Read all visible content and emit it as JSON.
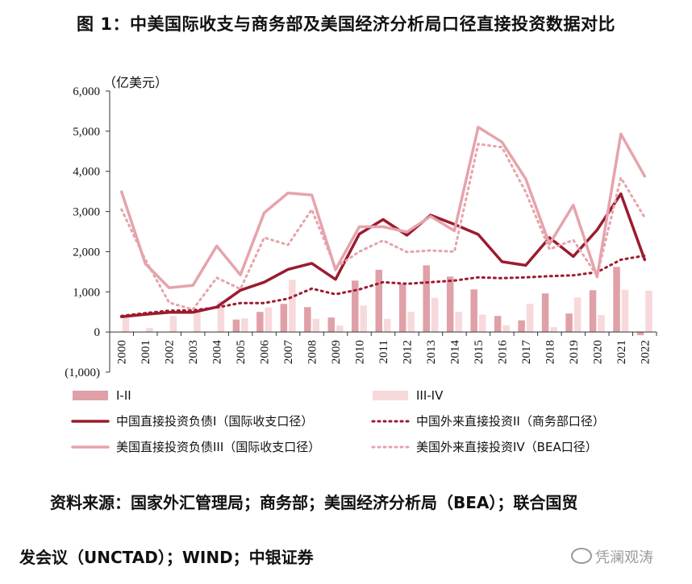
{
  "title": "图 1：中美国际收支与商务部及美国经济分析局口径直接投资数据对比",
  "source_line1": "资料来源：国家外汇管理局；商务部；美国经济分析局（BEA）；联合国贸",
  "source_line2": "发会议（UNCTAD）；WIND；中银证券",
  "watermark": "凭澜观涛",
  "colors": {
    "dark_red": "#9b1b30",
    "pink": "#e6a3ab",
    "light_pink": "#f6d6d9",
    "bar_dark": "#e0a0a8",
    "bar_light": "#f7d8db",
    "negative_tick": "#cc0000"
  },
  "chart_data": {
    "type": "bar+line",
    "unit_label": "（亿美元）",
    "ylim": [
      -1000,
      6000
    ],
    "yticks": [
      -1000,
      0,
      1000,
      2000,
      3000,
      4000,
      5000,
      6000
    ],
    "ytick_labels": [
      "(1,000)",
      "0",
      "1,000",
      "2,000",
      "3,000",
      "4,000",
      "5,000",
      "6,000"
    ],
    "categories": [
      "2000",
      "2001",
      "2002",
      "2003",
      "2004",
      "2005",
      "2006",
      "2007",
      "2008",
      "2009",
      "2010",
      "2011",
      "2012",
      "2013",
      "2014",
      "2015",
      "2016",
      "2017",
      "2018",
      "2019",
      "2020",
      "2021",
      "2022"
    ],
    "bar_series": [
      {
        "name": "I-II",
        "values": [
          0,
          0,
          0,
          0,
          0,
          310,
          500,
          700,
          620,
          360,
          1280,
          1550,
          1200,
          1660,
          1380,
          1060,
          400,
          290,
          960,
          460,
          1040,
          1620,
          -80
        ]
      },
      {
        "name": "III-IV",
        "values": [
          350,
          100,
          400,
          560,
          770,
          340,
          610,
          1300,
          330,
          160,
          660,
          330,
          500,
          850,
          500,
          430,
          170,
          700,
          120,
          860,
          420,
          1050,
          1030
        ]
      }
    ],
    "line_series": [
      {
        "name": "中国直接投资负债I（国际收支口径）",
        "style": "solid-dark",
        "values": [
          380,
          440,
          490,
          490,
          620,
          1040,
          1240,
          1560,
          1710,
          1310,
          2440,
          2800,
          2410,
          2910,
          2680,
          2430,
          1750,
          1660,
          2350,
          1880,
          2540,
          3440,
          1800
        ]
      },
      {
        "name": "中国外来直接投资II（商务部口径）",
        "style": "dotted-dark",
        "values": [
          400,
          470,
          530,
          540,
          610,
          720,
          720,
          830,
          1080,
          940,
          1060,
          1240,
          1200,
          1240,
          1280,
          1360,
          1340,
          1360,
          1390,
          1410,
          1490,
          1800,
          1900
        ]
      },
      {
        "name": "美国直接投资负债III（国际收支口径）",
        "style": "solid-pink",
        "values": [
          3490,
          1700,
          1100,
          1160,
          2140,
          1420,
          2970,
          3460,
          3410,
          1550,
          2620,
          2620,
          2490,
          2880,
          2520,
          5100,
          4730,
          3810,
          2190,
          3160,
          1370,
          4930,
          3880
        ]
      },
      {
        "name": "美国外来直接投资IV（BEA口径）",
        "style": "dotted-pink",
        "values": [
          3050,
          1800,
          730,
          560,
          1350,
          1070,
          2350,
          2170,
          3050,
          1600,
          2000,
          2280,
          1990,
          2030,
          2000,
          4680,
          4600,
          3480,
          2060,
          2290,
          1400,
          3840,
          2850
        ]
      }
    ],
    "legend": [
      "I-II",
      "III-IV",
      "中国直接投资负债I（国际收支口径）",
      "中国外来直接投资II（商务部口径）",
      "美国直接投资负债III（国际收支口径）",
      "美国外来直接投资IV（BEA口径）"
    ],
    "grid": false,
    "legend_position": "bottom"
  }
}
